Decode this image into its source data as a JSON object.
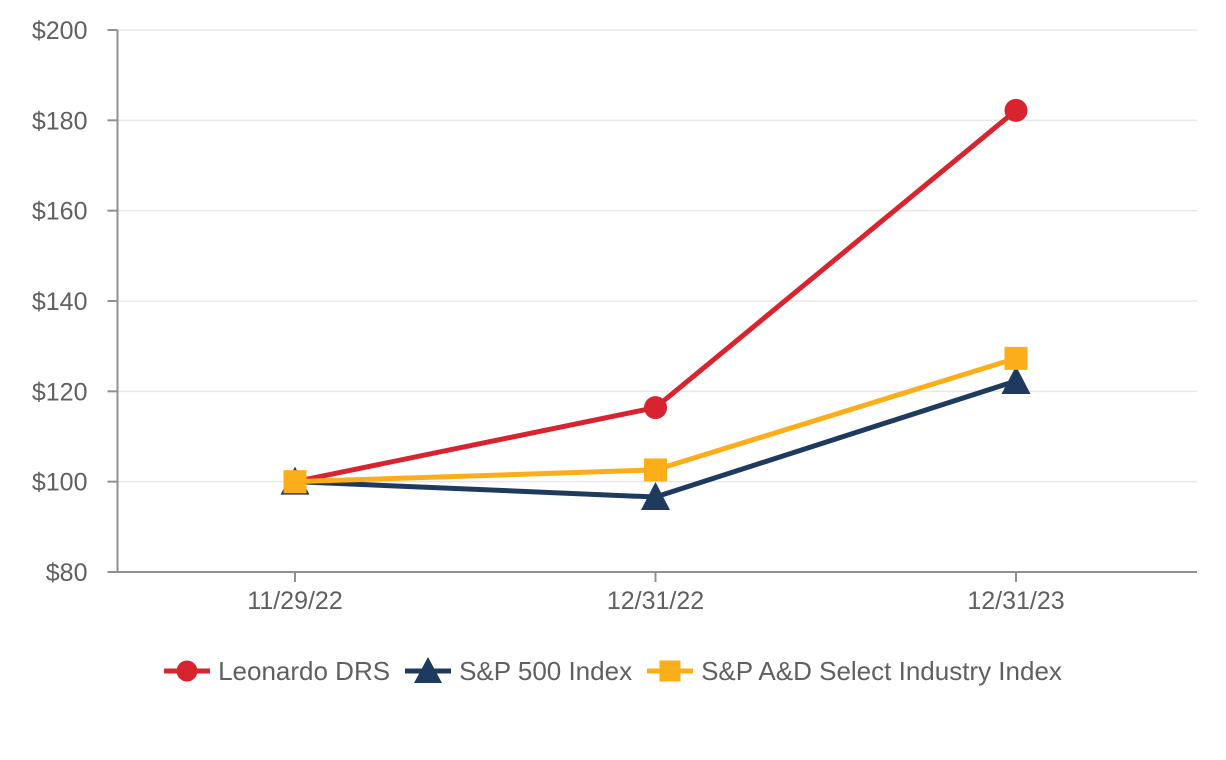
{
  "colors": {
    "background": "#FFFFFF",
    "grid": "#E8E8E8",
    "axis": "#909090",
    "text": "#606060"
  },
  "chart_data": {
    "type": "line",
    "title": "",
    "xlabel": "",
    "ylabel": "",
    "x_categories": [
      "11/29/22",
      "12/31/22",
      "12/31/23"
    ],
    "y_ticks": [
      80,
      100,
      120,
      140,
      160,
      180,
      200
    ],
    "y_tick_labels": [
      "$80",
      "$100",
      "$120",
      "$140",
      "$160",
      "$180",
      "$200"
    ],
    "ylim": [
      80,
      200
    ],
    "grid": true,
    "legend_position": "bottom",
    "series": [
      {
        "name": "Leonardo DRS",
        "marker": "circle",
        "color": "#D7242F",
        "values": [
          100.0,
          116.4,
          182.2
        ]
      },
      {
        "name": "S&P 500 Index",
        "marker": "triangle",
        "color": "#1F3A5F",
        "values": [
          100.0,
          96.6,
          122.3
        ]
      },
      {
        "name": "S&P A&D Select Industry Index",
        "marker": "square",
        "color": "#FBAD1A",
        "values": [
          100.0,
          102.6,
          127.3
        ]
      }
    ]
  }
}
